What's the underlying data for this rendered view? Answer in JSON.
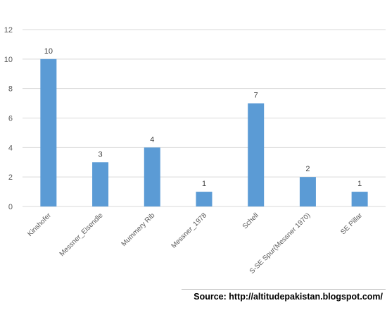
{
  "chart_data": {
    "type": "bar",
    "categories": [
      "Kinshofer",
      "Messner_Eisendle",
      "Mummery Rib",
      "Messner_1978",
      "Schell",
      "S-SE Spur(Messner 1970)",
      "SE Pillar"
    ],
    "values": [
      10,
      3,
      4,
      1,
      7,
      2,
      1
    ],
    "title": "",
    "xlabel": "",
    "ylabel": "",
    "ylim": [
      0,
      12
    ],
    "yticks": [
      0,
      2,
      4,
      6,
      8,
      10,
      12
    ],
    "grid": true,
    "legend": "none",
    "bar_color": "#5b9bd5",
    "data_labels": true
  },
  "source_text": "Source: http://altitudepakistan.blogspot.com/"
}
